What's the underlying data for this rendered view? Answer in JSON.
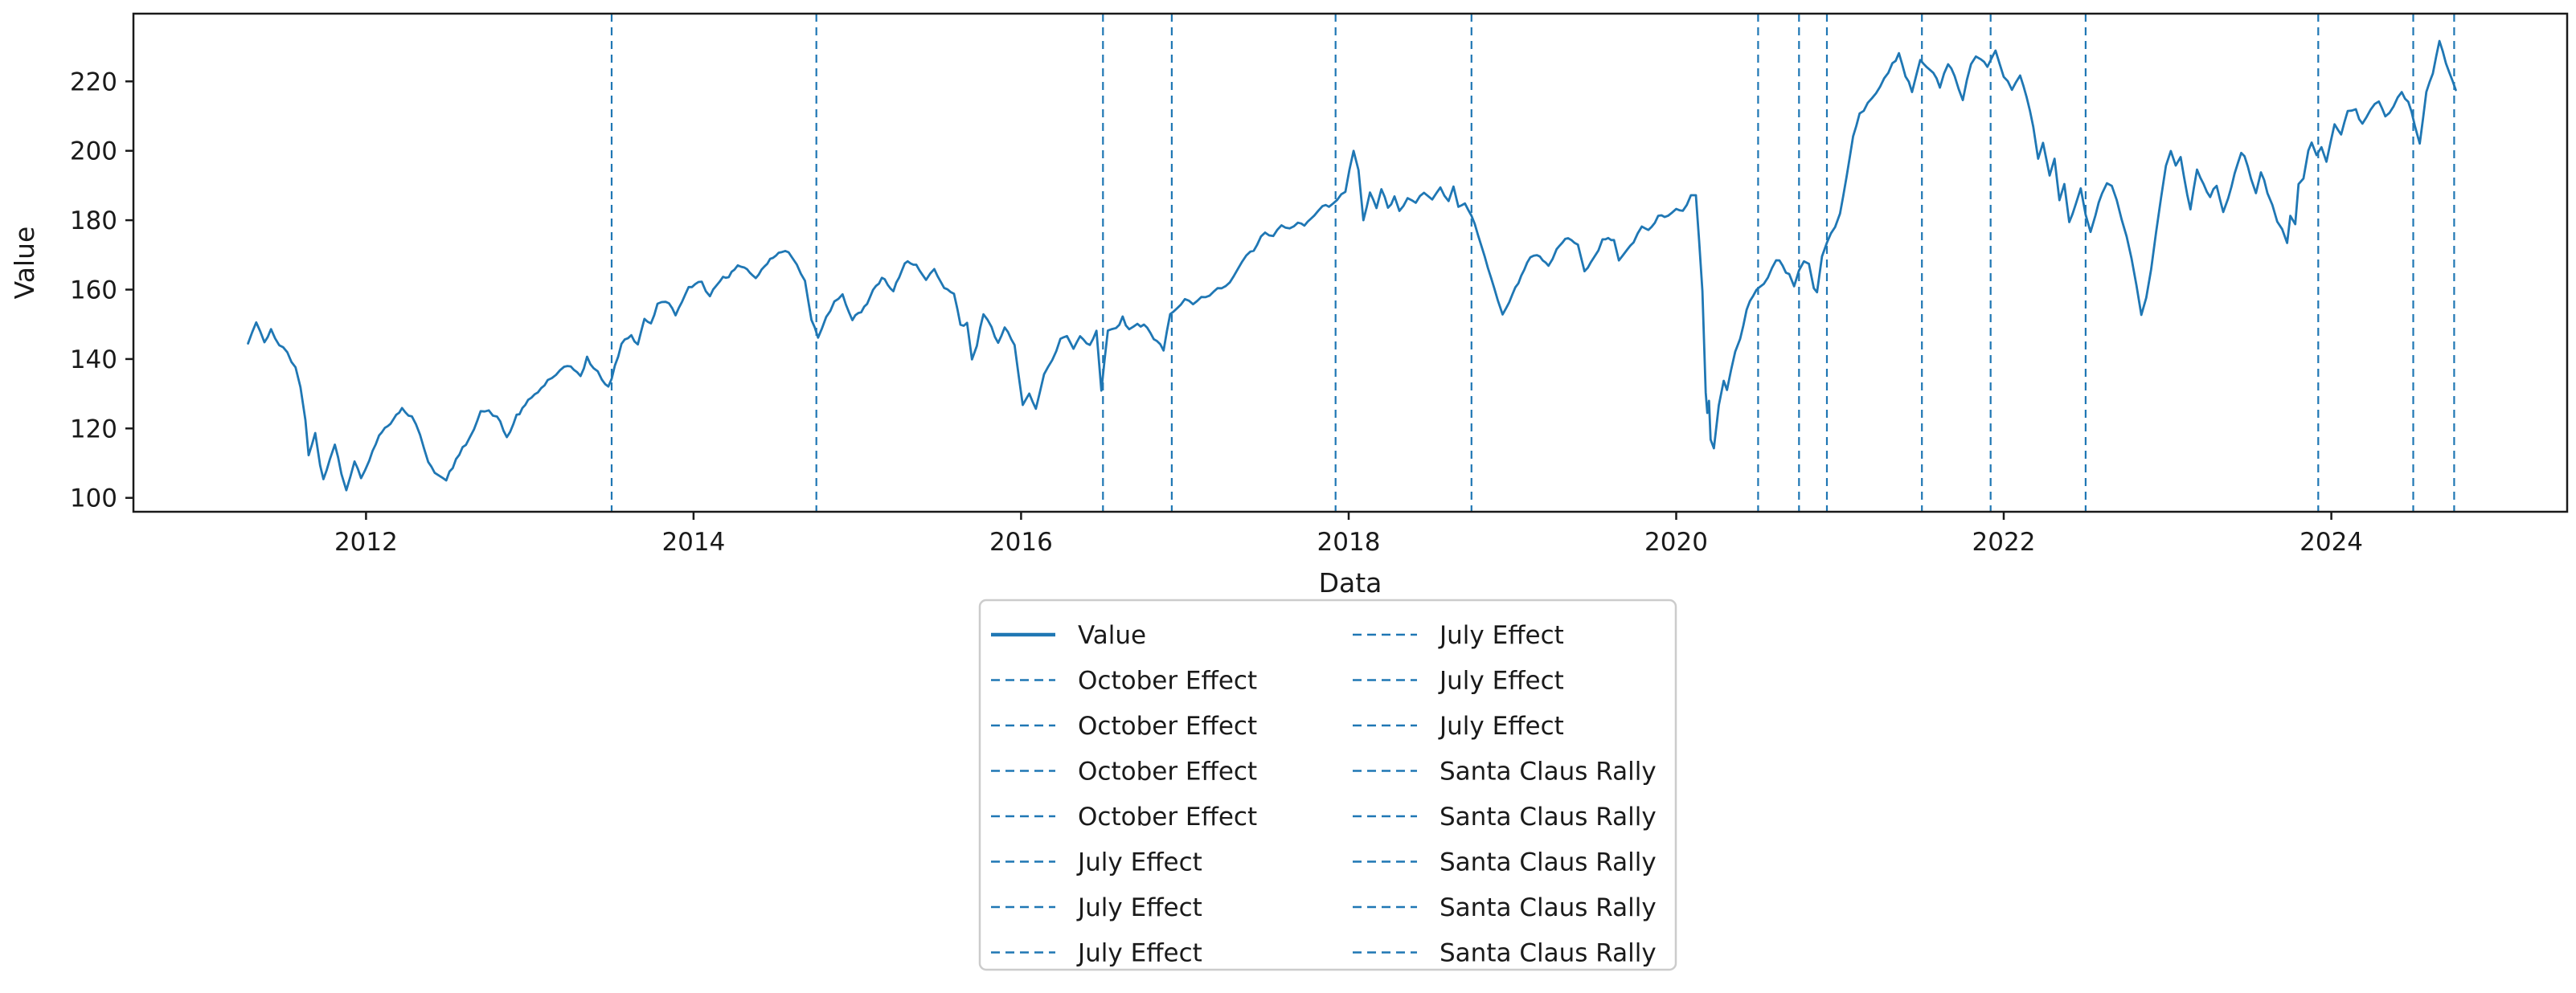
{
  "chart_data": {
    "type": "line",
    "title": "",
    "xlabel": "Data",
    "ylabel": "Value",
    "xlim": [
      2010.58,
      2025.44
    ],
    "ylim": [
      96,
      239.5
    ],
    "xticks": [
      2012,
      2014,
      2016,
      2018,
      2020,
      2022,
      2024
    ],
    "yticks": [
      100,
      120,
      140,
      160,
      180,
      200,
      220
    ],
    "grid": false,
    "legend_position": "below-center",
    "line_color": "#1f77b4",
    "event_line_color": "#1f77b4",
    "series": [
      {
        "name": "Value",
        "style": "solid",
        "x": [
          2011.28,
          2011.33,
          2011.38,
          2011.42,
          2011.47,
          2011.52,
          2011.57,
          2011.6,
          2011.63,
          2011.65,
          2011.69,
          2011.72,
          2011.74,
          2011.78,
          2011.81,
          2011.85,
          2011.88,
          2011.93,
          2011.97,
          2012.02,
          2012.08,
          2012.15,
          2012.22,
          2012.28,
          2012.33,
          2012.38,
          2012.44,
          2012.49,
          2012.55,
          2012.61,
          2012.66,
          2012.7,
          2012.75,
          2012.8,
          2012.86,
          2012.92,
          2012.99,
          2013.05,
          2013.11,
          2013.16,
          2013.21,
          2013.27,
          2013.31,
          2013.35,
          2013.39,
          2013.44,
          2013.48,
          2013.52,
          2013.56,
          2013.62,
          2013.66,
          2013.7,
          2013.74,
          2013.78,
          2013.83,
          2013.89,
          2013.97,
          2014.05,
          2014.1,
          2014.18,
          2014.25,
          2014.31,
          2014.38,
          2014.45,
          2014.52,
          2014.58,
          2014.63,
          2014.68,
          2014.72,
          2014.76,
          2014.81,
          2014.86,
          2014.91,
          2014.97,
          2015.06,
          2015.15,
          2015.22,
          2015.29,
          2015.36,
          2015.42,
          2015.47,
          2015.53,
          2015.59,
          2015.63,
          2015.67,
          2015.7,
          2015.73,
          2015.77,
          2015.82,
          2015.86,
          2015.9,
          2015.96,
          2016.01,
          2016.05,
          2016.09,
          2016.14,
          2016.19,
          2016.24,
          2016.28,
          2016.32,
          2016.36,
          2016.42,
          2016.46,
          2016.49,
          2016.53,
          2016.58,
          2016.62,
          2016.66,
          2016.71,
          2016.77,
          2016.81,
          2016.87,
          2016.91,
          2016.95,
          2017.0,
          2017.05,
          2017.1,
          2017.15,
          2017.2,
          2017.25,
          2017.3,
          2017.35,
          2017.4,
          2017.44,
          2017.49,
          2017.54,
          2017.59,
          2017.64,
          2017.69,
          2017.73,
          2017.79,
          2017.84,
          2017.88,
          2017.93,
          2017.98,
          2018.03,
          2018.06,
          2018.09,
          2018.13,
          2018.17,
          2018.2,
          2018.24,
          2018.28,
          2018.31,
          2018.36,
          2018.41,
          2018.46,
          2018.51,
          2018.56,
          2018.61,
          2018.64,
          2018.67,
          2018.71,
          2018.75,
          2018.79,
          2018.83,
          2018.87,
          2018.91,
          2018.94,
          2019.0,
          2019.09,
          2019.15,
          2019.22,
          2019.27,
          2019.34,
          2019.4,
          2019.44,
          2019.5,
          2019.55,
          2019.62,
          2019.65,
          2019.7,
          2019.74,
          2019.79,
          2019.85,
          2019.89,
          2019.95,
          2020.0,
          2020.04,
          2020.09,
          2020.12,
          2020.14,
          2020.16,
          2020.18,
          2020.19,
          2020.2,
          2020.21,
          2020.23,
          2020.26,
          2020.29,
          2020.31,
          2020.36,
          2020.39,
          2020.43,
          2020.47,
          2020.51,
          2020.56,
          2020.61,
          2020.65,
          2020.69,
          2020.72,
          2020.75,
          2020.78,
          2020.81,
          2020.84,
          2020.86,
          2020.89,
          2020.92,
          2020.97,
          2021.0,
          2021.04,
          2021.08,
          2021.12,
          2021.17,
          2021.22,
          2021.27,
          2021.32,
          2021.36,
          2021.4,
          2021.44,
          2021.49,
          2021.53,
          2021.57,
          2021.61,
          2021.66,
          2021.7,
          2021.75,
          2021.8,
          2021.83,
          2021.86,
          2021.9,
          2021.95,
          2022.0,
          2022.05,
          2022.1,
          2022.14,
          2022.18,
          2022.21,
          2022.24,
          2022.28,
          2022.31,
          2022.34,
          2022.37,
          2022.4,
          2022.44,
          2022.47,
          2022.5,
          2022.53,
          2022.56,
          2022.6,
          2022.63,
          2022.66,
          2022.69,
          2022.72,
          2022.75,
          2022.78,
          2022.81,
          2022.84,
          2022.87,
          2022.9,
          2022.93,
          2022.96,
          2022.99,
          2023.02,
          2023.05,
          2023.08,
          2023.12,
          2023.14,
          2023.18,
          2023.22,
          2023.26,
          2023.3,
          2023.34,
          2023.37,
          2023.41,
          2023.45,
          2023.47,
          2023.51,
          2023.54,
          2023.57,
          2023.61,
          2023.64,
          2023.67,
          2023.7,
          2023.73,
          2023.75,
          2023.78,
          2023.8,
          2023.83,
          2023.86,
          2023.88,
          2023.91,
          2023.94,
          2023.97,
          2024.02,
          2024.06,
          2024.1,
          2024.15,
          2024.19,
          2024.24,
          2024.29,
          2024.33,
          2024.38,
          2024.43,
          2024.47,
          2024.51,
          2024.54,
          2024.58,
          2024.62,
          2024.66,
          2024.7,
          2024.72,
          2024.76
        ],
        "y": [
          144.5,
          150.5,
          144,
          148.5,
          144,
          141.5,
          137,
          131,
          122,
          112.5,
          118.5,
          109,
          106,
          111,
          116,
          108,
          103.5,
          112.5,
          106.5,
          112.5,
          118,
          123,
          126.5,
          124,
          118,
          111,
          107.5,
          105,
          110.5,
          115,
          121,
          126,
          125,
          123.5,
          117,
          123.5,
          127,
          130,
          133.5,
          135.5,
          137,
          135.5,
          134.5,
          140.5,
          137,
          134,
          131.5,
          137.5,
          144,
          147,
          144.5,
          152.5,
          150,
          155.5,
          157,
          153.5,
          159.5,
          162.5,
          158.5,
          164.5,
          166,
          167,
          164,
          168,
          170.5,
          171,
          168,
          163,
          152.5,
          147,
          153.5,
          158,
          160,
          151,
          155.5,
          163,
          159.5,
          166,
          168,
          162.5,
          164.5,
          158.5,
          158,
          148.5,
          149,
          138.5,
          143,
          152.5,
          150,
          145.5,
          148.5,
          143,
          127,
          131.5,
          127,
          136,
          139,
          145.5,
          146.5,
          143,
          147,
          145,
          149,
          131.5,
          148.5,
          150.5,
          153,
          149,
          150.5,
          150,
          147,
          143.5,
          152.5,
          153.5,
          156,
          155.5,
          159,
          160,
          161,
          160.5,
          164.5,
          169,
          171,
          172.5,
          176,
          174.5,
          177,
          176,
          178.5,
          177.5,
          180.5,
          182,
          182.5,
          184.5,
          187,
          199,
          193,
          179,
          187.5,
          182.5,
          187.5,
          183,
          186,
          182,
          186,
          184,
          187.5,
          184.5,
          188.5,
          185.5,
          189,
          183,
          184.5,
          180.5,
          176,
          171,
          165,
          157,
          152.5,
          160,
          167,
          170,
          167.5,
          172,
          175.5,
          172,
          166,
          171,
          175,
          174,
          169,
          171,
          174,
          178,
          178.5,
          181,
          180,
          183.5,
          182.5,
          187,
          187.5,
          175,
          160,
          130.5,
          124.5,
          128.5,
          116.5,
          114,
          126,
          134,
          130.5,
          142,
          146.5,
          154.5,
          158.5,
          160.5,
          163.5,
          169,
          167.5,
          164.5,
          161.5,
          166,
          168.5,
          167.5,
          160.5,
          159,
          170,
          173,
          177.5,
          182,
          192,
          204,
          211,
          214,
          217,
          221.5,
          226,
          228.5,
          221,
          217,
          226,
          224,
          222.5,
          219,
          226,
          222.5,
          215,
          225,
          227,
          225.5,
          224.5,
          229,
          221.5,
          218,
          221.5,
          214,
          207,
          197,
          202.5,
          193,
          197.5,
          185.5,
          190,
          178.5,
          183,
          187,
          179,
          174,
          178.5,
          186,
          190,
          188.5,
          185.5,
          180,
          174.5,
          168,
          160,
          152,
          156.5,
          165,
          175,
          185,
          195,
          200,
          196,
          198,
          188.5,
          184.5,
          195.5,
          190,
          186,
          190,
          181.5,
          186,
          192.5,
          199,
          197.5,
          191.5,
          187.5,
          193.5,
          187.5,
          184,
          180,
          177.5,
          173,
          181,
          178.5,
          189.5,
          191.5,
          199.5,
          202.5,
          198,
          201,
          196.5,
          207,
          204,
          210,
          212.5,
          208,
          213.5,
          216,
          210.5,
          214,
          217.5,
          214.5,
          208,
          202.5,
          216.5,
          222,
          231.5,
          225.5,
          223.5,
          217.5
        ]
      }
    ],
    "event_lines": [
      {
        "label": "October Effect",
        "x": 2014.75
      },
      {
        "label": "October Effect",
        "x": 2018.75
      },
      {
        "label": "October Effect",
        "x": 2020.75
      },
      {
        "label": "October Effect",
        "x": 2024.75
      },
      {
        "label": "July Effect",
        "x": 2013.5
      },
      {
        "label": "July Effect",
        "x": 2016.5
      },
      {
        "label": "July Effect",
        "x": 2020.5
      },
      {
        "label": "July Effect",
        "x": 2021.5
      },
      {
        "label": "July Effect",
        "x": 2022.5
      },
      {
        "label": "July Effect",
        "x": 2024.5
      },
      {
        "label": "Santa Claus Rally",
        "x": 2016.92
      },
      {
        "label": "Santa Claus Rally",
        "x": 2017.92
      },
      {
        "label": "Santa Claus Rally",
        "x": 2020.92
      },
      {
        "label": "Santa Claus Rally",
        "x": 2021.92
      },
      {
        "label": "Santa Claus Rally",
        "x": 2023.92
      }
    ],
    "legend": {
      "columns": 2,
      "rows_per_column": 8,
      "entries": [
        {
          "label": "Value",
          "style": "solid"
        },
        {
          "label": "October Effect",
          "style": "dashed"
        },
        {
          "label": "October Effect",
          "style": "dashed"
        },
        {
          "label": "October Effect",
          "style": "dashed"
        },
        {
          "label": "October Effect",
          "style": "dashed"
        },
        {
          "label": "July Effect",
          "style": "dashed"
        },
        {
          "label": "July Effect",
          "style": "dashed"
        },
        {
          "label": "July Effect",
          "style": "dashed"
        },
        {
          "label": "July Effect",
          "style": "dashed"
        },
        {
          "label": "July Effect",
          "style": "dashed"
        },
        {
          "label": "July Effect",
          "style": "dashed"
        },
        {
          "label": "Santa Claus Rally",
          "style": "dashed"
        },
        {
          "label": "Santa Claus Rally",
          "style": "dashed"
        },
        {
          "label": "Santa Claus Rally",
          "style": "dashed"
        },
        {
          "label": "Santa Claus Rally",
          "style": "dashed"
        },
        {
          "label": "Santa Claus Rally",
          "style": "dashed"
        }
      ]
    }
  }
}
